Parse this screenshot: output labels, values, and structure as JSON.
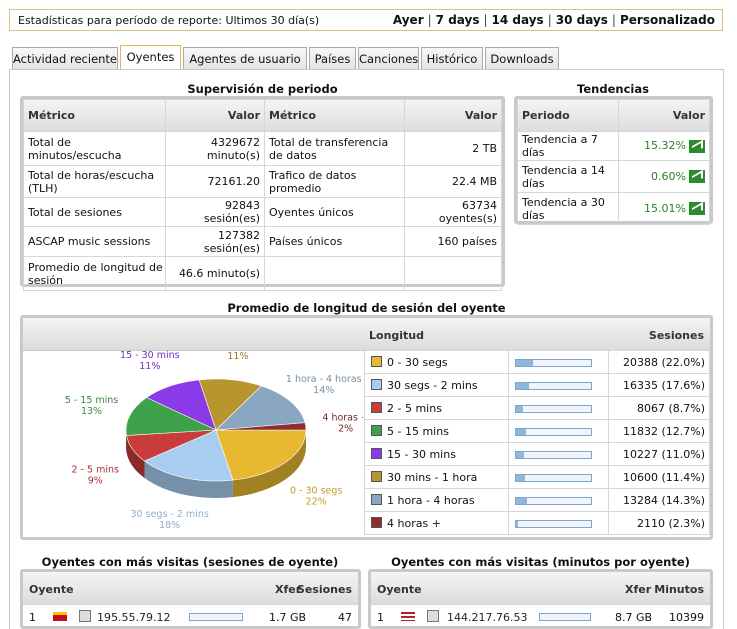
{
  "topbar": {
    "label": "Estadísticas para período de reporte: Ultimos 30 día(s)",
    "periods": [
      "Ayer",
      "7 days",
      "14 days",
      "30 days",
      "Personalizado"
    ]
  },
  "tabs": [
    "Actividad reciente",
    "Oyentes",
    "Agentes de usuario",
    "Países",
    "Canciones",
    "Histórico",
    "Downloads"
  ],
  "active_tab": "Oyentes",
  "supervision": {
    "title": "Supervisión de periodo",
    "headers": [
      "Métrico",
      "Valor",
      "Métrico",
      "Valor"
    ],
    "rows": [
      [
        "Total de minutos/escucha",
        "4329672 minuto(s)",
        "Total de transferencia de datos",
        "2 TB"
      ],
      [
        "Total de horas/escucha (TLH)",
        "72161.20",
        "Trafico de datos promedio",
        "22.4 MB"
      ],
      [
        "Total de sesiones",
        "92843 sesión(es)",
        "Oyentes únicos",
        "63734 oyentes(s)"
      ],
      [
        "ASCAP music sessions",
        "127382 sesión(es)",
        "Países únicos",
        "160 países"
      ],
      [
        "Promedio de longitud de sesión",
        "46.6 minuto(s)",
        "",
        ""
      ]
    ]
  },
  "tendencias": {
    "title": "Tendencias",
    "headers": [
      "Periodo",
      "Valor"
    ],
    "rows": [
      {
        "period": "Tendencia a 7 días",
        "value": "15.32%"
      },
      {
        "period": "Tendencia a 14 días",
        "value": "0.60%"
      },
      {
        "period": "Tendencia a 30 días",
        "value": "15.01%"
      }
    ],
    "icon": "trend-up-icon"
  },
  "session_length": {
    "title": "Promedio de longitud de sesión del oyente",
    "headers": [
      "Longitud",
      "Sesiones"
    ],
    "chart_data": {
      "type": "pie",
      "slices": [
        {
          "label": "0 - 30 segs",
          "pct": "22%",
          "value": 22.0,
          "color": "#e8b830"
        },
        {
          "label": "30 segs - 2 mins",
          "pct": "18%",
          "value": 17.6,
          "color": "#a9cdf0"
        },
        {
          "label": "2 - 5 mins",
          "pct": "9%",
          "value": 8.7,
          "color": "#c83c3c"
        },
        {
          "label": "5 - 15 mins",
          "pct": "13%",
          "value": 12.7,
          "color": "#3ea24a"
        },
        {
          "label": "15 - 30 mins",
          "pct": "11%",
          "value": 11.0,
          "color": "#8a3ae6"
        },
        {
          "label": "30 mins - 1 hora",
          "pct": "11%",
          "value": 11.4,
          "color": "#b8962e"
        },
        {
          "label": "1 hora - 4 horas",
          "pct": "14%",
          "value": 14.3,
          "color": "#8aa6c0"
        },
        {
          "label": "4 horas +",
          "pct": "2%",
          "value": 2.3,
          "color": "#8c2e2e"
        }
      ]
    },
    "rows": [
      {
        "label": "0 - 30 segs",
        "sessions": "20388 (22.0%)",
        "pct": 22.0,
        "color": "#e8b830"
      },
      {
        "label": "30 segs - 2 mins",
        "sessions": "16335 (17.6%)",
        "pct": 17.6,
        "color": "#a9cdf0"
      },
      {
        "label": "2 - 5 mins",
        "sessions": "8067 (8.7%)",
        "pct": 8.7,
        "color": "#c83c3c"
      },
      {
        "label": "5 - 15 mins",
        "sessions": "11832 (12.7%)",
        "pct": 12.7,
        "color": "#3ea24a"
      },
      {
        "label": "15 - 30 mins",
        "sessions": "10227 (11.0%)",
        "pct": 11.0,
        "color": "#8a3ae6"
      },
      {
        "label": "30 mins - 1 hora",
        "sessions": "10600 (11.4%)",
        "pct": 11.4,
        "color": "#b8962e"
      },
      {
        "label": "1 hora - 4 horas",
        "sessions": "13284 (14.3%)",
        "pct": 14.3,
        "color": "#8aa6c0"
      },
      {
        "label": "4 horas +",
        "sessions": "2110 (2.3%)",
        "pct": 2.3,
        "color": "#8c2e2e"
      }
    ]
  },
  "top_sessions": {
    "title": "Oyentes con más visitas (sesiones de oyente)",
    "headers": [
      "Oyente",
      "Xfer",
      "Sesiones"
    ],
    "first_row": {
      "rank": "1",
      "ip": "195.55.79.12",
      "xfer": "1.7 GB",
      "value": "47"
    }
  },
  "top_minutes": {
    "title": "Oyentes con más visitas (minutos por oyente)",
    "headers": [
      "Oyente",
      "Xfer",
      "Minutos"
    ],
    "first_row": {
      "rank": "1",
      "ip": "144.217.76.53",
      "xfer": "8.7 GB",
      "value": "10399"
    }
  }
}
